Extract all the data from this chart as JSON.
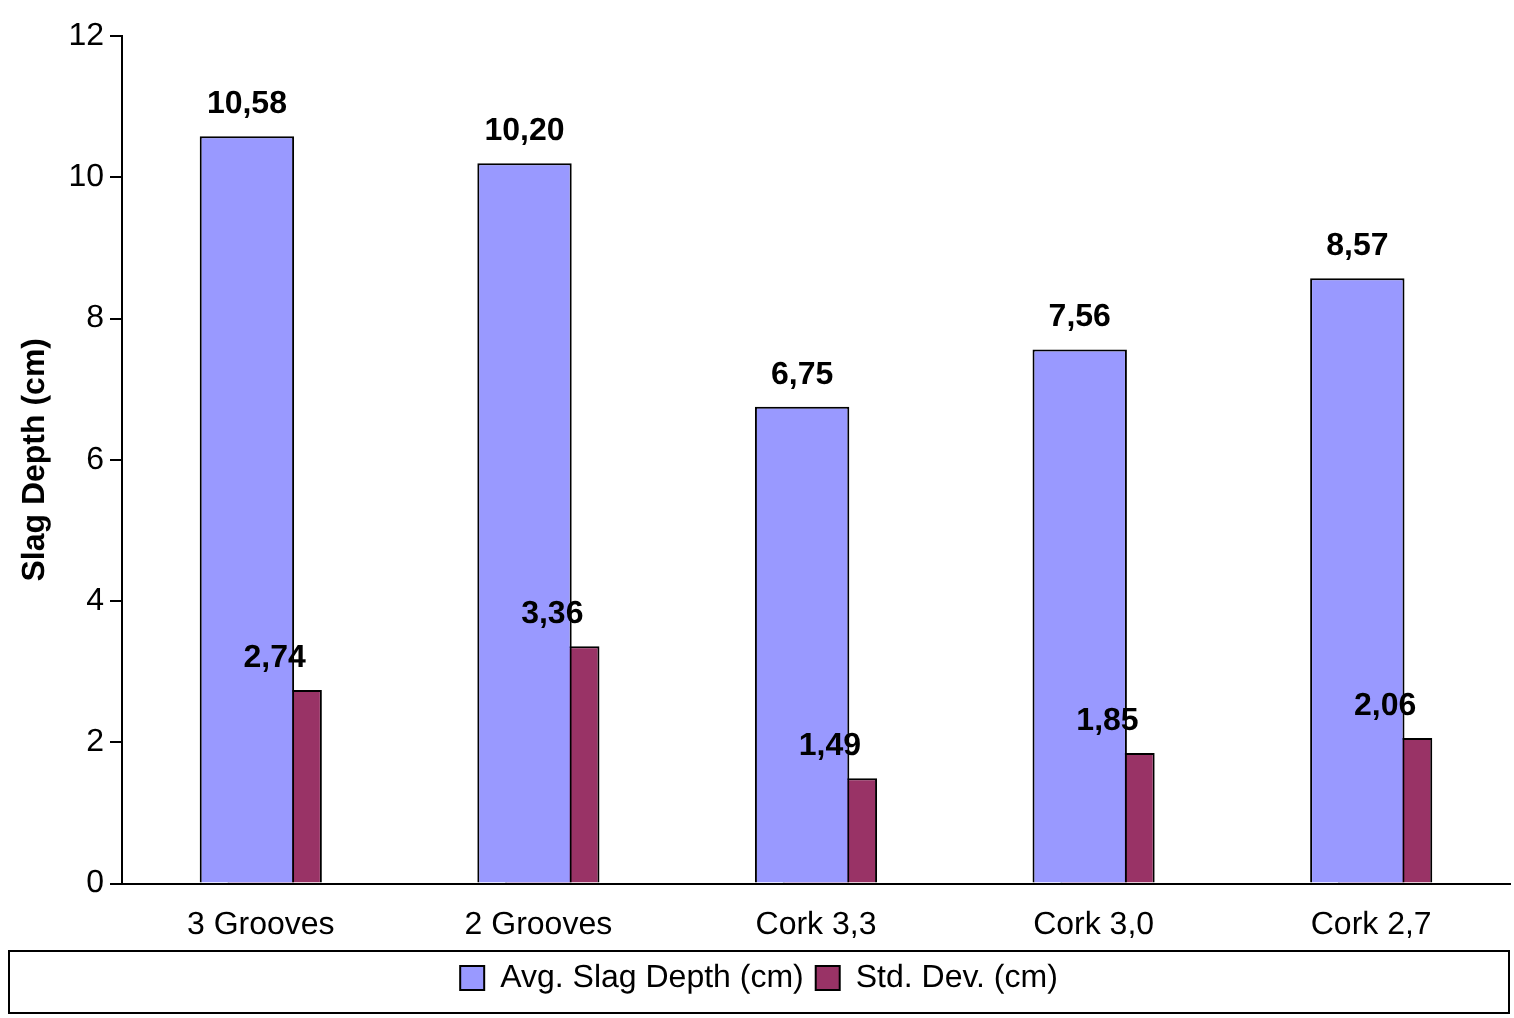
{
  "chart_data": {
    "type": "bar",
    "ylabel": "Slag Depth (cm)",
    "categories": [
      "3 Grooves",
      "2 Grooves",
      "Cork 3,3",
      "Cork 3,0",
      "Cork 2,7"
    ],
    "series": [
      {
        "name": "Avg. Slag Depth (cm)",
        "color": "#9999ff",
        "values": [
          10.58,
          10.2,
          6.75,
          7.56,
          8.57
        ],
        "value_labels": [
          "10,58",
          "10,20",
          "6,75",
          "7,56",
          "8,57"
        ]
      },
      {
        "name": "Std. Dev. (cm)",
        "color": "#993366",
        "values": [
          2.74,
          3.36,
          1.49,
          1.85,
          2.06
        ],
        "value_labels": [
          "2,74",
          "3,36",
          "1,49",
          "1,85",
          "2,06"
        ]
      }
    ],
    "ylim": [
      0,
      12
    ],
    "yticks": [
      0,
      2,
      4,
      6,
      8,
      10,
      12
    ],
    "grid": false,
    "legend": "bottom"
  }
}
